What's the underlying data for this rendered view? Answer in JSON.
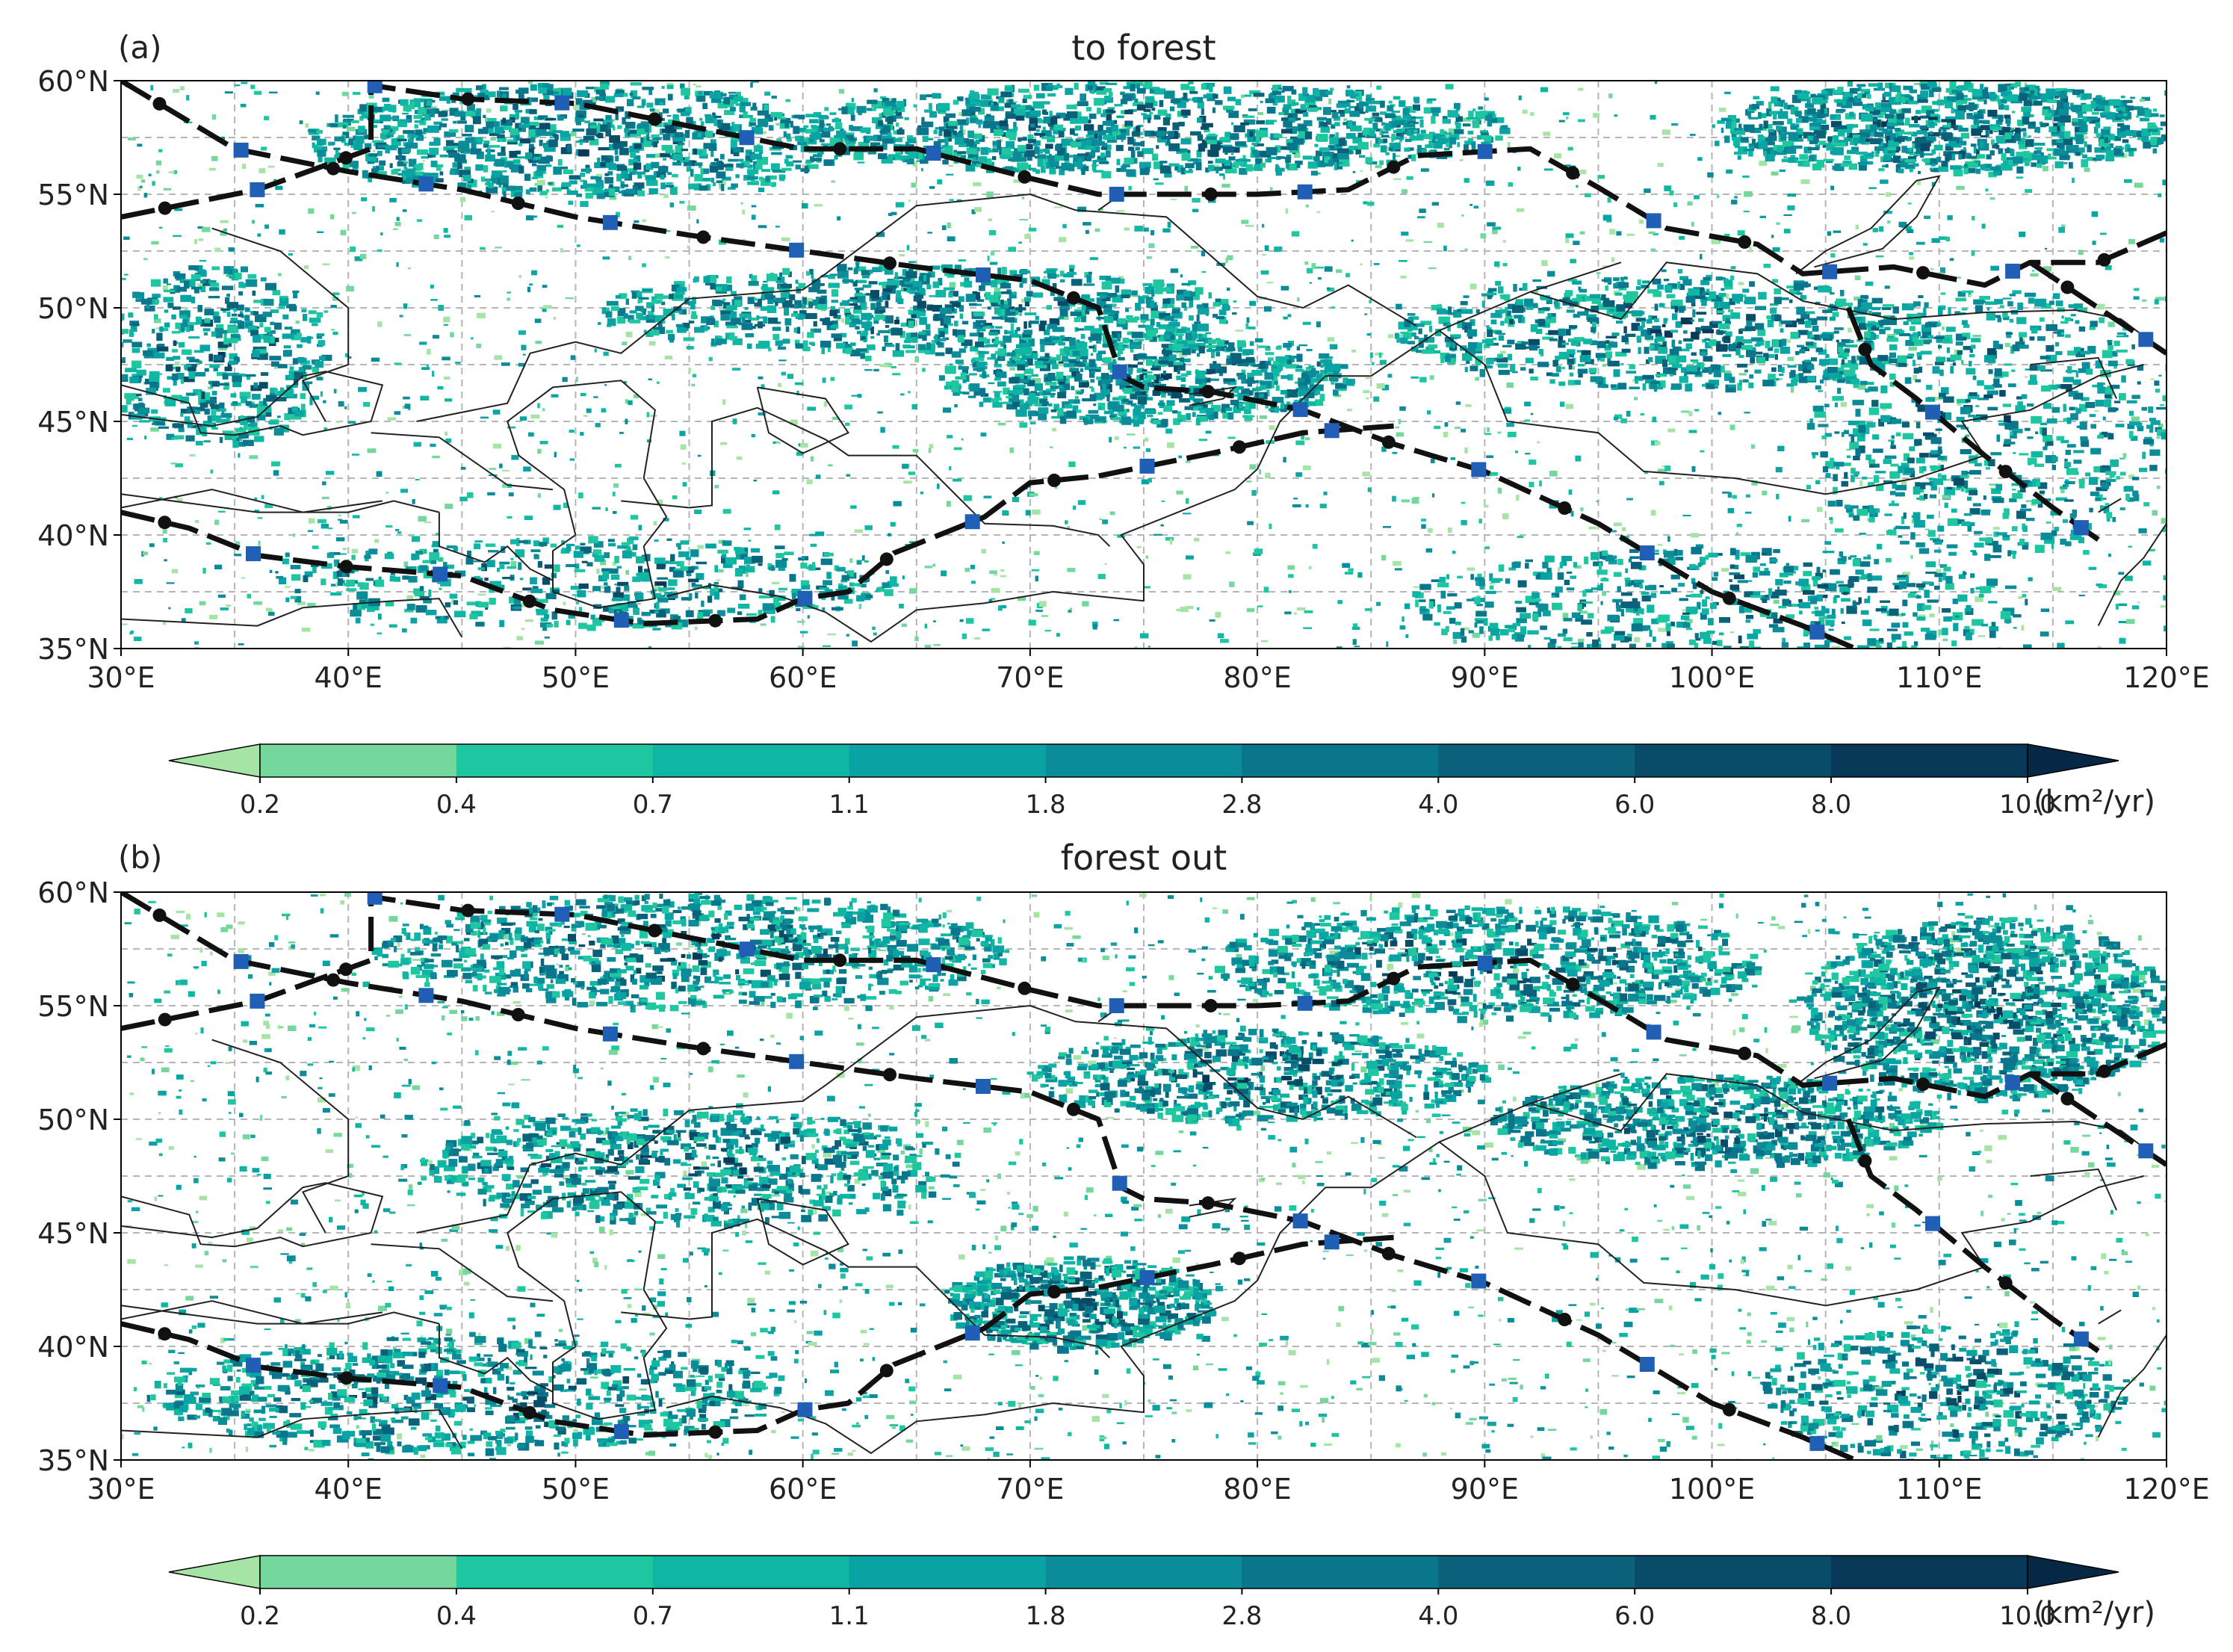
{
  "panels": [
    {
      "id": "a",
      "label": "(a)",
      "title": "to forest",
      "seed": 11,
      "clusters": [
        {
          "lon": 50,
          "lat": 57.5,
          "rlon": 12,
          "rlat": 2.5,
          "w": 1.0
        },
        {
          "lon": 75,
          "lat": 58,
          "rlon": 16,
          "rlat": 2,
          "w": 1.2
        },
        {
          "lon": 110,
          "lat": 58,
          "rlon": 10,
          "rlat": 2,
          "w": 1.0
        },
        {
          "lon": 65,
          "lat": 50,
          "rlon": 14,
          "rlat": 2,
          "w": 0.9
        },
        {
          "lon": 75,
          "lat": 47,
          "rlon": 9,
          "rlat": 2,
          "w": 0.8
        },
        {
          "lon": 98,
          "lat": 49,
          "rlon": 12,
          "rlat": 2.5,
          "w": 0.8
        },
        {
          "lon": 112,
          "lat": 45,
          "rlon": 8,
          "rlat": 6,
          "w": 0.7
        },
        {
          "lon": 50,
          "lat": 38,
          "rlon": 14,
          "rlat": 2,
          "w": 0.5
        },
        {
          "lon": 100,
          "lat": 37,
          "rlon": 14,
          "rlat": 2.5,
          "w": 0.6
        },
        {
          "lon": 34,
          "lat": 48,
          "rlon": 5,
          "rlat": 4,
          "w": 0.5
        }
      ]
    },
    {
      "id": "b",
      "label": "(b)",
      "title": "forest out",
      "seed": 29,
      "clusters": [
        {
          "lon": 55,
          "lat": 57.5,
          "rlon": 14,
          "rlat": 2.5,
          "w": 1.0
        },
        {
          "lon": 90,
          "lat": 57,
          "rlon": 12,
          "rlat": 2.5,
          "w": 0.9
        },
        {
          "lon": 112,
          "lat": 55,
          "rlon": 8,
          "rlat": 4,
          "w": 1.3
        },
        {
          "lon": 55,
          "lat": 48,
          "rlon": 12,
          "rlat": 2.5,
          "w": 0.8
        },
        {
          "lon": 80,
          "lat": 52,
          "rlon": 10,
          "rlat": 2,
          "w": 0.7
        },
        {
          "lon": 100,
          "lat": 50,
          "rlon": 10,
          "rlat": 2,
          "w": 0.8
        },
        {
          "lon": 45,
          "lat": 38,
          "rlon": 14,
          "rlat": 2.5,
          "w": 0.8
        },
        {
          "lon": 72,
          "lat": 42,
          "rlon": 6,
          "rlat": 2,
          "w": 0.6
        },
        {
          "lon": 110,
          "lat": 38,
          "rlon": 8,
          "rlat": 3,
          "w": 0.5
        }
      ]
    }
  ],
  "axes": {
    "lon_range": [
      30,
      120
    ],
    "lat_range": [
      35,
      60
    ],
    "lon_ticks": [
      {
        "value": 30,
        "label": "30°E"
      },
      {
        "value": 40,
        "label": "40°E"
      },
      {
        "value": 50,
        "label": "50°E"
      },
      {
        "value": 60,
        "label": "60°E"
      },
      {
        "value": 70,
        "label": "70°E"
      },
      {
        "value": 80,
        "label": "80°E"
      },
      {
        "value": 90,
        "label": "90°E"
      },
      {
        "value": 100,
        "label": "100°E"
      },
      {
        "value": 110,
        "label": "110°E"
      },
      {
        "value": 120,
        "label": "120°E"
      }
    ],
    "lat_ticks": [
      {
        "value": 35,
        "label": "35°N"
      },
      {
        "value": 40,
        "label": "40°N"
      },
      {
        "value": 45,
        "label": "45°N"
      },
      {
        "value": 50,
        "label": "50°N"
      },
      {
        "value": 55,
        "label": "55°N"
      },
      {
        "value": 60,
        "label": "60°N"
      }
    ],
    "grid_lon_step": 5,
    "grid_lat_step": 2.5,
    "grid": true
  },
  "colorbar": {
    "labels": [
      "0.2",
      "0.4",
      "0.7",
      "1.1",
      "1.8",
      "2.8",
      "4.0",
      "6.0",
      "8.0",
      "10.0"
    ],
    "unit": "(km²/yr)",
    "colors": [
      "#a6e4a6",
      "#74d79b",
      "#1fc7a0",
      "#0fb6a4",
      "#0aa3a3",
      "#0a8d99",
      "#0a768b",
      "#0a617a",
      "#094c68",
      "#083858",
      "#062845"
    ],
    "extend": "both"
  },
  "colors": {
    "route_line": "#111111",
    "dot_marker": "#111111",
    "square_marker": "#1f5fb5",
    "border_line": "#222222",
    "grid_line": "#b5b5b5"
  },
  "routes": [
    {
      "name": "route-north-1",
      "points": [
        [
          30,
          60
        ],
        [
          35,
          57
        ],
        [
          40,
          56
        ],
        [
          45,
          55.2
        ],
        [
          50,
          54
        ],
        [
          55,
          53.2
        ],
        [
          60,
          52.5
        ],
        [
          65,
          51.8
        ],
        [
          70,
          51.2
        ],
        [
          73,
          50
        ],
        [
          74,
          47
        ],
        [
          75,
          46.5
        ],
        [
          78,
          46.3
        ],
        [
          82,
          45.5
        ],
        [
          86,
          44
        ],
        [
          90,
          42.8
        ],
        [
          95,
          40.5
        ],
        [
          100,
          37.5
        ],
        [
          104,
          36
        ],
        [
          107,
          34.7
        ]
      ]
    },
    {
      "name": "route-north-2",
      "points": [
        [
          30,
          54
        ],
        [
          36,
          55.2
        ],
        [
          41,
          57
        ],
        [
          41,
          59.8
        ],
        [
          45,
          59.2
        ],
        [
          50,
          59
        ],
        [
          55,
          58
        ],
        [
          60,
          57
        ],
        [
          65,
          57
        ],
        [
          70,
          55.7
        ],
        [
          73,
          55
        ],
        [
          80,
          55
        ],
        [
          84,
          55.2
        ],
        [
          87,
          56.7
        ],
        [
          92,
          57
        ],
        [
          95,
          55.3
        ],
        [
          98,
          53.5
        ],
        [
          102,
          52.8
        ],
        [
          104,
          51.5
        ],
        [
          108,
          51.8
        ],
        [
          112,
          51
        ],
        [
          114,
          52
        ],
        [
          117,
          52
        ],
        [
          120,
          53.3
        ]
      ]
    },
    {
      "name": "route-south",
      "points": [
        [
          30,
          41
        ],
        [
          33,
          40.3
        ],
        [
          36,
          39.1
        ],
        [
          40,
          38.6
        ],
        [
          45,
          38.2
        ],
        [
          49,
          36.7
        ],
        [
          53,
          36.1
        ],
        [
          58,
          36.3
        ],
        [
          60,
          37.2
        ],
        [
          62,
          37.5
        ],
        [
          64,
          39.2
        ],
        [
          66,
          40
        ],
        [
          68,
          40.8
        ],
        [
          70,
          42.3
        ],
        [
          73,
          42.6
        ],
        [
          78,
          43.6
        ],
        [
          82,
          44.5
        ],
        [
          86,
          44.8
        ]
      ]
    },
    {
      "name": "route-east",
      "points": [
        [
          106,
          50
        ],
        [
          107,
          47.5
        ],
        [
          109,
          46
        ],
        [
          112,
          43.5
        ],
        [
          115,
          41.2
        ],
        [
          117,
          39.8
        ]
      ]
    },
    {
      "name": "route-east-2",
      "points": [
        [
          114,
          52
        ],
        [
          117,
          50
        ],
        [
          120,
          48
        ]
      ]
    }
  ],
  "borders": [
    [
      [
        34,
        53.5
      ],
      [
        37,
        52.5
      ],
      [
        40,
        50
      ],
      [
        40,
        47.5
      ],
      [
        38,
        46.8
      ],
      [
        39,
        45
      ]
    ],
    [
      [
        41,
        44.5
      ],
      [
        44,
        44.3
      ],
      [
        47,
        42.2
      ],
      [
        49,
        42
      ]
    ],
    [
      [
        43,
        45
      ],
      [
        47,
        45.8
      ],
      [
        48,
        48
      ],
      [
        50,
        48.5
      ],
      [
        52,
        48
      ],
      [
        55,
        50.4
      ],
      [
        60,
        50.8
      ],
      [
        61,
        51.5
      ],
      [
        65,
        54.5
      ],
      [
        70,
        55
      ],
      [
        72,
        54.3
      ],
      [
        76,
        54
      ],
      [
        80,
        50.5
      ],
      [
        82,
        50
      ],
      [
        84,
        51
      ],
      [
        87,
        49.2
      ]
    ],
    [
      [
        52,
        41.5
      ],
      [
        55,
        41.2
      ],
      [
        56,
        41.3
      ],
      [
        56,
        45
      ],
      [
        58,
        45.6
      ],
      [
        61,
        44.2
      ],
      [
        62,
        43.5
      ],
      [
        65,
        43.5
      ],
      [
        67,
        41.5
      ],
      [
        68,
        40.5
      ],
      [
        71,
        40.4
      ],
      [
        73,
        40
      ],
      [
        73.5,
        39.5
      ]
    ],
    [
      [
        56,
        37.8
      ],
      [
        59,
        37.3
      ],
      [
        61,
        36.6
      ],
      [
        63,
        35.3
      ],
      [
        65,
        36.7
      ],
      [
        68,
        37
      ],
      [
        71,
        37.5
      ],
      [
        73,
        37.3
      ],
      [
        75,
        37.1
      ],
      [
        75,
        38.7
      ],
      [
        74,
        40
      ],
      [
        76,
        40.8
      ],
      [
        79,
        42
      ],
      [
        80,
        42.9
      ]
    ],
    [
      [
        80,
        42.9
      ],
      [
        81,
        45
      ],
      [
        83,
        47
      ],
      [
        85,
        47
      ],
      [
        88,
        49
      ],
      [
        92,
        50.7
      ],
      [
        96,
        49.5
      ],
      [
        98,
        52
      ],
      [
        102,
        51.5
      ],
      [
        104,
        50.3
      ],
      [
        108,
        49.5
      ],
      [
        112,
        49.8
      ],
      [
        116,
        49.9
      ],
      [
        118,
        49.5
      ],
      [
        120,
        48
      ]
    ],
    [
      [
        88,
        49
      ],
      [
        90,
        47.5
      ],
      [
        91,
        45
      ],
      [
        95,
        44.5
      ],
      [
        97,
        42.8
      ],
      [
        101,
        42.5
      ],
      [
        105,
        41.8
      ],
      [
        109,
        42.5
      ],
      [
        112,
        43.5
      ],
      [
        111,
        45
      ],
      [
        114,
        45.5
      ],
      [
        117,
        47
      ],
      [
        119,
        47.5
      ]
    ],
    [
      [
        44,
        41
      ],
      [
        42,
        41.5
      ],
      [
        40,
        41
      ],
      [
        36,
        41
      ],
      [
        30,
        41.8
      ]
    ],
    [
      [
        44,
        41
      ],
      [
        44,
        39.5
      ],
      [
        46,
        38.8
      ],
      [
        47,
        39.5
      ],
      [
        48,
        38.5
      ],
      [
        49,
        38
      ]
    ],
    [
      [
        54,
        37.3
      ],
      [
        56,
        37.8
      ]
    ],
    [
      [
        30,
        36.3
      ],
      [
        36,
        36
      ],
      [
        38,
        36.8
      ],
      [
        42,
        37.1
      ],
      [
        44,
        37.2
      ],
      [
        45,
        35.5
      ]
    ],
    [
      [
        50,
        40
      ],
      [
        49.5,
        42
      ],
      [
        47.5,
        43.5
      ],
      [
        47,
        45
      ],
      [
        49,
        46.5
      ],
      [
        52,
        46.8
      ],
      [
        53.5,
        45.5
      ],
      [
        53,
        42.5
      ],
      [
        54,
        40.8
      ],
      [
        53,
        39.5
      ],
      [
        53.5,
        37.2
      ],
      [
        51,
        36.8
      ],
      [
        49,
        37.5
      ],
      [
        49,
        39.3
      ],
      [
        50,
        40
      ]
    ],
    [
      [
        58,
        46.5
      ],
      [
        61,
        46
      ],
      [
        62,
        44.5
      ],
      [
        60,
        43.6
      ],
      [
        58.5,
        44.5
      ],
      [
        58,
        46.5
      ]
    ],
    [
      [
        27,
        46
      ],
      [
        30,
        45.3
      ],
      [
        34,
        44.8
      ],
      [
        36,
        45.2
      ],
      [
        38,
        47
      ],
      [
        39,
        47.2
      ],
      [
        41.5,
        46.6
      ],
      [
        41,
        45
      ],
      [
        38,
        44.4
      ],
      [
        37,
        44.8
      ],
      [
        35,
        44.4
      ],
      [
        33.5,
        44.5
      ],
      [
        33,
        45.8
      ],
      [
        30,
        46.6
      ]
    ],
    [
      [
        27,
        43
      ],
      [
        30,
        41.2
      ],
      [
        34,
        42
      ],
      [
        38,
        41
      ],
      [
        41.5,
        41.5
      ]
    ],
    [
      [
        103.7,
        51.5
      ],
      [
        105,
        52.5
      ],
      [
        107,
        53.5
      ],
      [
        109,
        55.6
      ],
      [
        110,
        55.8
      ],
      [
        109,
        54
      ],
      [
        107.5,
        52.6
      ],
      [
        104.5,
        51.8
      ]
    ],
    [
      [
        77,
        46.2
      ],
      [
        79,
        46.5
      ],
      [
        78.5,
        46
      ],
      [
        77,
        45.7
      ]
    ],
    [
      [
        73,
        54.3
      ],
      [
        74,
        55
      ]
    ],
    [
      [
        92,
        50.7
      ],
      [
        96,
        52
      ]
    ],
    [
      [
        114,
        47.5
      ],
      [
        117,
        47.8
      ],
      [
        117.8,
        46
      ]
    ],
    [
      [
        117,
        36
      ],
      [
        118,
        38
      ],
      [
        119,
        39
      ],
      [
        120,
        40.5
      ]
    ],
    [
      [
        117,
        41
      ],
      [
        118,
        41.6
      ]
    ]
  ]
}
